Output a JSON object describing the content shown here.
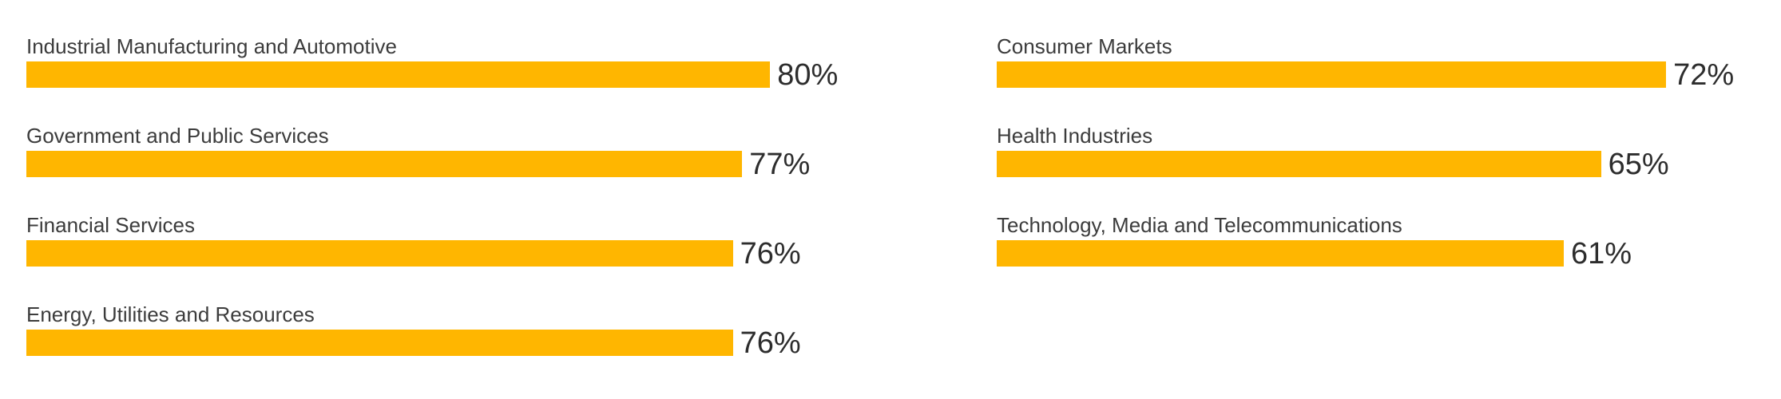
{
  "chart_data": {
    "type": "bar",
    "orientation": "horizontal",
    "title": "",
    "xlabel": "",
    "ylabel": "",
    "value_unit": "%",
    "xlim": [
      0,
      100
    ],
    "grid": false,
    "legend": false,
    "bar_color": "#FFB600",
    "label_color": "#3c3c3c",
    "value_color": "#2d2d2d",
    "columns": [
      {
        "items": [
          {
            "label": "Industrial Manufacturing and Automotive",
            "value": 80,
            "value_label": "80%"
          },
          {
            "label": "Government and Public Services",
            "value": 77,
            "value_label": "77%"
          },
          {
            "label": "Financial Services",
            "value": 76,
            "value_label": "76%"
          },
          {
            "label": "Energy, Utilities and Resources",
            "value": 76,
            "value_label": "76%"
          }
        ]
      },
      {
        "items": [
          {
            "label": "Consumer Markets",
            "value": 72,
            "value_label": "72%"
          },
          {
            "label": "Health Industries",
            "value": 65,
            "value_label": "65%"
          },
          {
            "label": "Technology, Media and Telecommunications",
            "value": 61,
            "value_label": "61%"
          }
        ]
      }
    ]
  }
}
